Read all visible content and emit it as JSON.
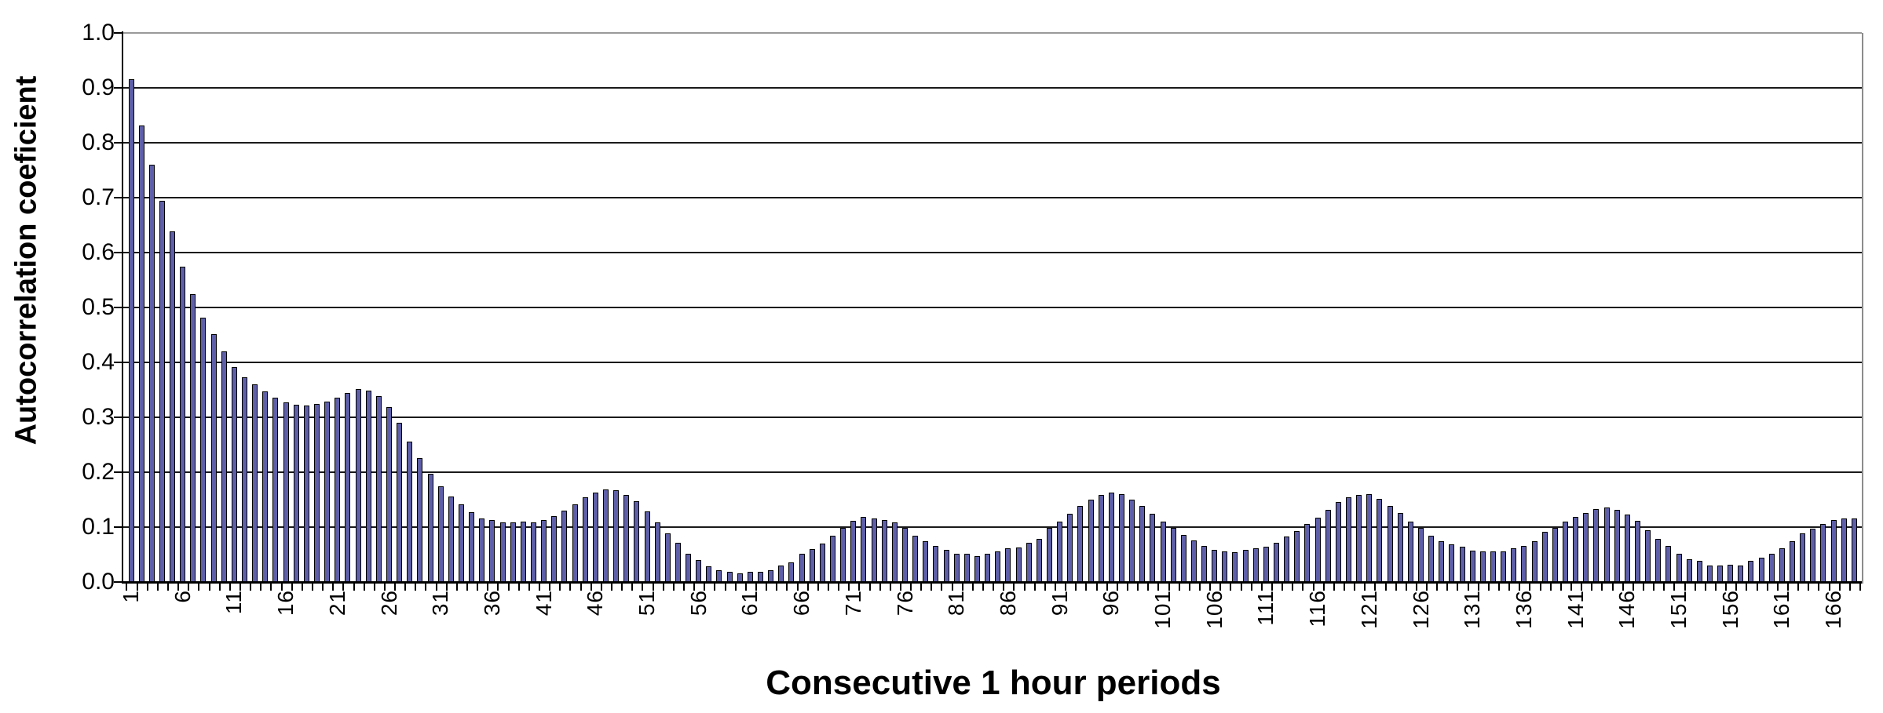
{
  "chart_data": {
    "type": "bar",
    "title": "",
    "xlabel": "Consecutive 1 hour periods",
    "ylabel": "Autocorrelation coeficient",
    "x_start": 1,
    "x_end": 168,
    "x_step": 1,
    "ylim": [
      0.0,
      1.0
    ],
    "y_gridline_interval": 0.1,
    "grid": "horizontal",
    "legend_position": "none",
    "bar_color": "#5e5fa8",
    "bar_border_color": "#000000",
    "axis_color": "#000000",
    "y_tick_labels": [
      "1.0",
      "0.9",
      "0.8",
      "0.7",
      "0.6",
      "0.5",
      "0.4",
      "0.3",
      "0.2",
      "0.1",
      "0.0"
    ],
    "x_tick_labels": [
      "1",
      "6",
      "11",
      "16",
      "21",
      "26",
      "31",
      "36",
      "41",
      "46",
      "51",
      "56",
      "61",
      "66",
      "71",
      "76",
      "81",
      "86",
      "91",
      "96",
      "101",
      "106",
      "111",
      "116",
      "121",
      "126",
      "131",
      "136",
      "141",
      "146",
      "151",
      "156",
      "161",
      "166"
    ],
    "values": [
      0.915,
      0.832,
      0.76,
      0.695,
      0.638,
      0.575,
      0.524,
      0.482,
      0.452,
      0.42,
      0.392,
      0.373,
      0.36,
      0.347,
      0.335,
      0.327,
      0.323,
      0.321,
      0.324,
      0.328,
      0.336,
      0.344,
      0.351,
      0.348,
      0.338,
      0.318,
      0.29,
      0.256,
      0.226,
      0.197,
      0.174,
      0.156,
      0.141,
      0.127,
      0.116,
      0.113,
      0.109,
      0.108,
      0.11,
      0.108,
      0.113,
      0.12,
      0.13,
      0.142,
      0.154,
      0.163,
      0.168,
      0.167,
      0.159,
      0.147,
      0.128,
      0.109,
      0.089,
      0.072,
      0.052,
      0.04,
      0.028,
      0.022,
      0.019,
      0.016,
      0.019,
      0.019,
      0.022,
      0.03,
      0.036,
      0.052,
      0.06,
      0.07,
      0.084,
      0.099,
      0.111,
      0.118,
      0.116,
      0.113,
      0.108,
      0.098,
      0.084,
      0.074,
      0.066,
      0.059,
      0.052,
      0.052,
      0.047,
      0.052,
      0.056,
      0.061,
      0.063,
      0.071,
      0.079,
      0.098,
      0.11,
      0.124,
      0.138,
      0.15,
      0.158,
      0.163,
      0.16,
      0.15,
      0.138,
      0.124,
      0.11,
      0.098,
      0.086,
      0.075,
      0.066,
      0.059,
      0.055,
      0.054,
      0.059,
      0.061,
      0.064,
      0.072,
      0.083,
      0.093,
      0.106,
      0.117,
      0.132,
      0.145,
      0.154,
      0.159,
      0.16,
      0.152,
      0.138,
      0.125,
      0.11,
      0.099,
      0.084,
      0.074,
      0.068,
      0.064,
      0.057,
      0.056,
      0.056,
      0.055,
      0.061,
      0.065,
      0.074,
      0.091,
      0.098,
      0.11,
      0.119,
      0.125,
      0.133,
      0.135,
      0.131,
      0.123,
      0.111,
      0.094,
      0.079,
      0.065,
      0.051,
      0.041,
      0.038,
      0.03,
      0.03,
      0.031,
      0.03,
      0.038,
      0.044,
      0.051,
      0.061,
      0.074,
      0.088,
      0.097,
      0.106,
      0.113,
      0.116,
      0.115
    ]
  }
}
